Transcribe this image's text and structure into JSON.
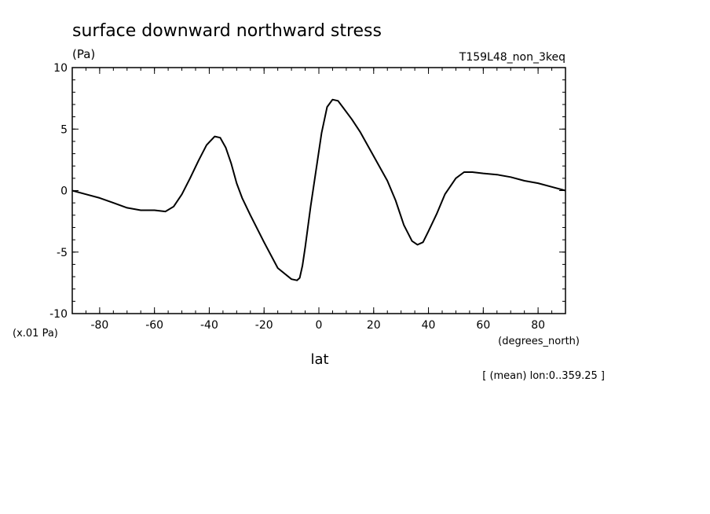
{
  "chart_data": {
    "type": "line",
    "title": "surface downward northward stress",
    "ylabel": "(Pa)",
    "y_scale_note": "(x.01 Pa)",
    "run_label": "T159L48_non_3keq",
    "xlabel": "lat",
    "x_units": "(degrees_north)",
    "footnote": "[ (mean) lon:0..359.25 ]",
    "xlim": [
      -90,
      90
    ],
    "ylim": [
      -10,
      10
    ],
    "x_ticks": [
      -80,
      -60,
      -40,
      -20,
      0,
      20,
      40,
      60,
      80
    ],
    "y_ticks": [
      -10,
      -5,
      0,
      5,
      10
    ],
    "line_color": "#000000",
    "series": [
      {
        "x": [
          -90,
          -85,
          -80,
          -75,
          -70,
          -65,
          -60,
          -56,
          -53,
          -50,
          -47,
          -44,
          -41,
          -38,
          -36,
          -34,
          -32,
          -30,
          -28,
          -25,
          -20,
          -15,
          -10,
          -8,
          -7,
          -6,
          -5,
          -3,
          -1,
          1,
          3,
          5,
          7,
          9,
          12,
          15,
          20,
          25,
          28,
          31,
          34,
          36,
          38,
          40,
          43,
          46,
          50,
          53,
          56,
          60,
          65,
          70,
          75,
          80,
          85,
          90
        ],
        "values": [
          0.0,
          -0.3,
          -0.6,
          -1.0,
          -1.4,
          -1.6,
          -1.6,
          -1.7,
          -1.3,
          -0.3,
          1.0,
          2.4,
          3.7,
          4.4,
          4.3,
          3.5,
          2.2,
          0.6,
          -0.6,
          -2.0,
          -4.2,
          -6.3,
          -7.2,
          -7.3,
          -7.1,
          -6.1,
          -4.6,
          -1.3,
          1.7,
          4.7,
          6.8,
          7.4,
          7.3,
          6.7,
          5.8,
          4.8,
          2.8,
          0.8,
          -0.8,
          -2.8,
          -4.1,
          -4.4,
          -4.2,
          -3.3,
          -1.9,
          -0.3,
          1.0,
          1.5,
          1.5,
          1.4,
          1.3,
          1.1,
          0.8,
          0.6,
          0.3,
          0.0
        ]
      }
    ]
  }
}
